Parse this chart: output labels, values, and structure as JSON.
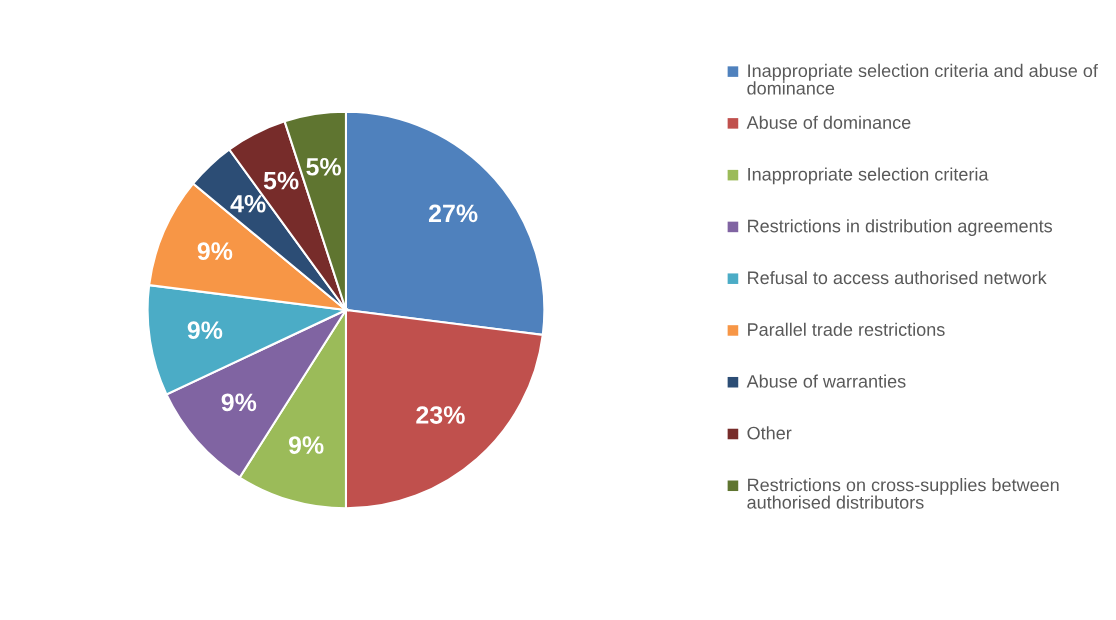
{
  "chart_data": {
    "type": "pie",
    "categories": [
      "Inappropriate selection criteria and abuse of dominance",
      "Abuse of dominance",
      "Inappropriate selection criteria",
      "Restrictions in distribution agreements",
      "Refusal to access authorised network",
      "Parallel trade restrictions",
      "Abuse of warranties",
      "Other",
      "Restrictions on cross-supplies between authorised distributors"
    ],
    "values": [
      27,
      23,
      9,
      9,
      9,
      9,
      4,
      5,
      5
    ],
    "colors": [
      "#4f81bd",
      "#c0504d",
      "#9bbb59",
      "#8064a2",
      "#4bacc6",
      "#f79646",
      "#2c4d75",
      "#772c2a",
      "#5f7530"
    ],
    "value_labels": [
      "27%",
      "23%",
      "9%",
      "9%",
      "9%",
      "9%",
      "4%",
      "5%",
      "5%"
    ],
    "legend": "right"
  }
}
